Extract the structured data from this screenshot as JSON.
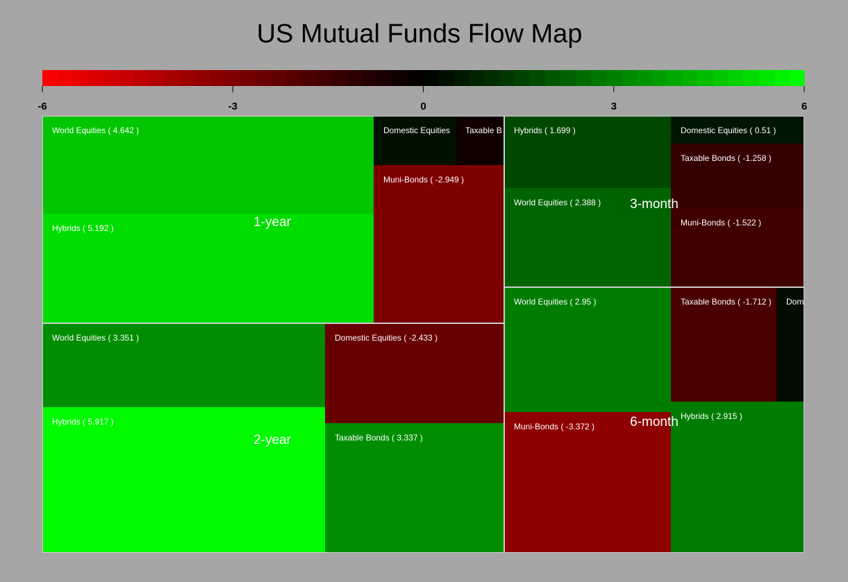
{
  "chart_data": {
    "type": "heatmap",
    "title": "US Mutual Funds Flow Map",
    "color_scale": {
      "min": -6,
      "max": 6,
      "ticks": [
        -6,
        -3,
        0,
        3,
        6
      ],
      "tick_labels": [
        "-6",
        "-3",
        "0",
        "3",
        "6"
      ],
      "low_color": "#ff0000",
      "mid_color": "#000000",
      "high_color": "#00ff00"
    },
    "groups": [
      {
        "name": "1-year",
        "items": [
          {
            "name": "World Equities",
            "value": 4.642,
            "label": "World Equities ( 4.642 )"
          },
          {
            "name": "Hybrids",
            "value": 5.192,
            "label": "Hybrids ( 5.192 )"
          },
          {
            "name": "Domestic Equities",
            "value": 0.4,
            "label": "Domestic Equities"
          },
          {
            "name": "Taxable Bonds",
            "value": -0.4,
            "label": "Taxable B"
          },
          {
            "name": "Muni-Bonds",
            "value": -2.949,
            "label": "Muni-Bonds ( -2.949 )"
          }
        ]
      },
      {
        "name": "2-year",
        "items": [
          {
            "name": "World Equities",
            "value": 3.351,
            "label": "World Equities ( 3.351 )"
          },
          {
            "name": "Hybrids",
            "value": 5.917,
            "label": "Hybrids ( 5.917 )"
          },
          {
            "name": "Domestic Equities",
            "value": -2.433,
            "label": "Domestic Equities ( -2.433 )"
          },
          {
            "name": "Taxable Bonds",
            "value": 3.337,
            "label": "Taxable Bonds ( 3.337 )"
          }
        ]
      },
      {
        "name": "3-month",
        "items": [
          {
            "name": "Hybrids",
            "value": 1.699,
            "label": "Hybrids ( 1.699 )"
          },
          {
            "name": "World Equities",
            "value": 2.388,
            "label": "World Equities ( 2.388 )"
          },
          {
            "name": "Domestic Equities",
            "value": 0.51,
            "label": "Domestic Equities ( 0.51 )"
          },
          {
            "name": "Taxable Bonds",
            "value": -1.258,
            "label": "Taxable Bonds ( -1.258 )"
          },
          {
            "name": "Muni-Bonds",
            "value": -1.522,
            "label": "Muni-Bonds ( -1.522 )"
          }
        ]
      },
      {
        "name": "6-month",
        "items": [
          {
            "name": "World Equities",
            "value": 2.95,
            "label": "World Equities ( 2.95 )"
          },
          {
            "name": "Muni-Bonds",
            "value": -3.372,
            "label": "Muni-Bonds ( -3.372 )"
          },
          {
            "name": "Taxable Bonds",
            "value": -1.712,
            "label": "Taxable Bonds ( -1.712 )"
          },
          {
            "name": "Domestic Equities",
            "value": 0.3,
            "label": "Dom"
          },
          {
            "name": "Hybrids",
            "value": 2.915,
            "label": "Hybrids ( 2.915 )"
          }
        ]
      }
    ]
  }
}
